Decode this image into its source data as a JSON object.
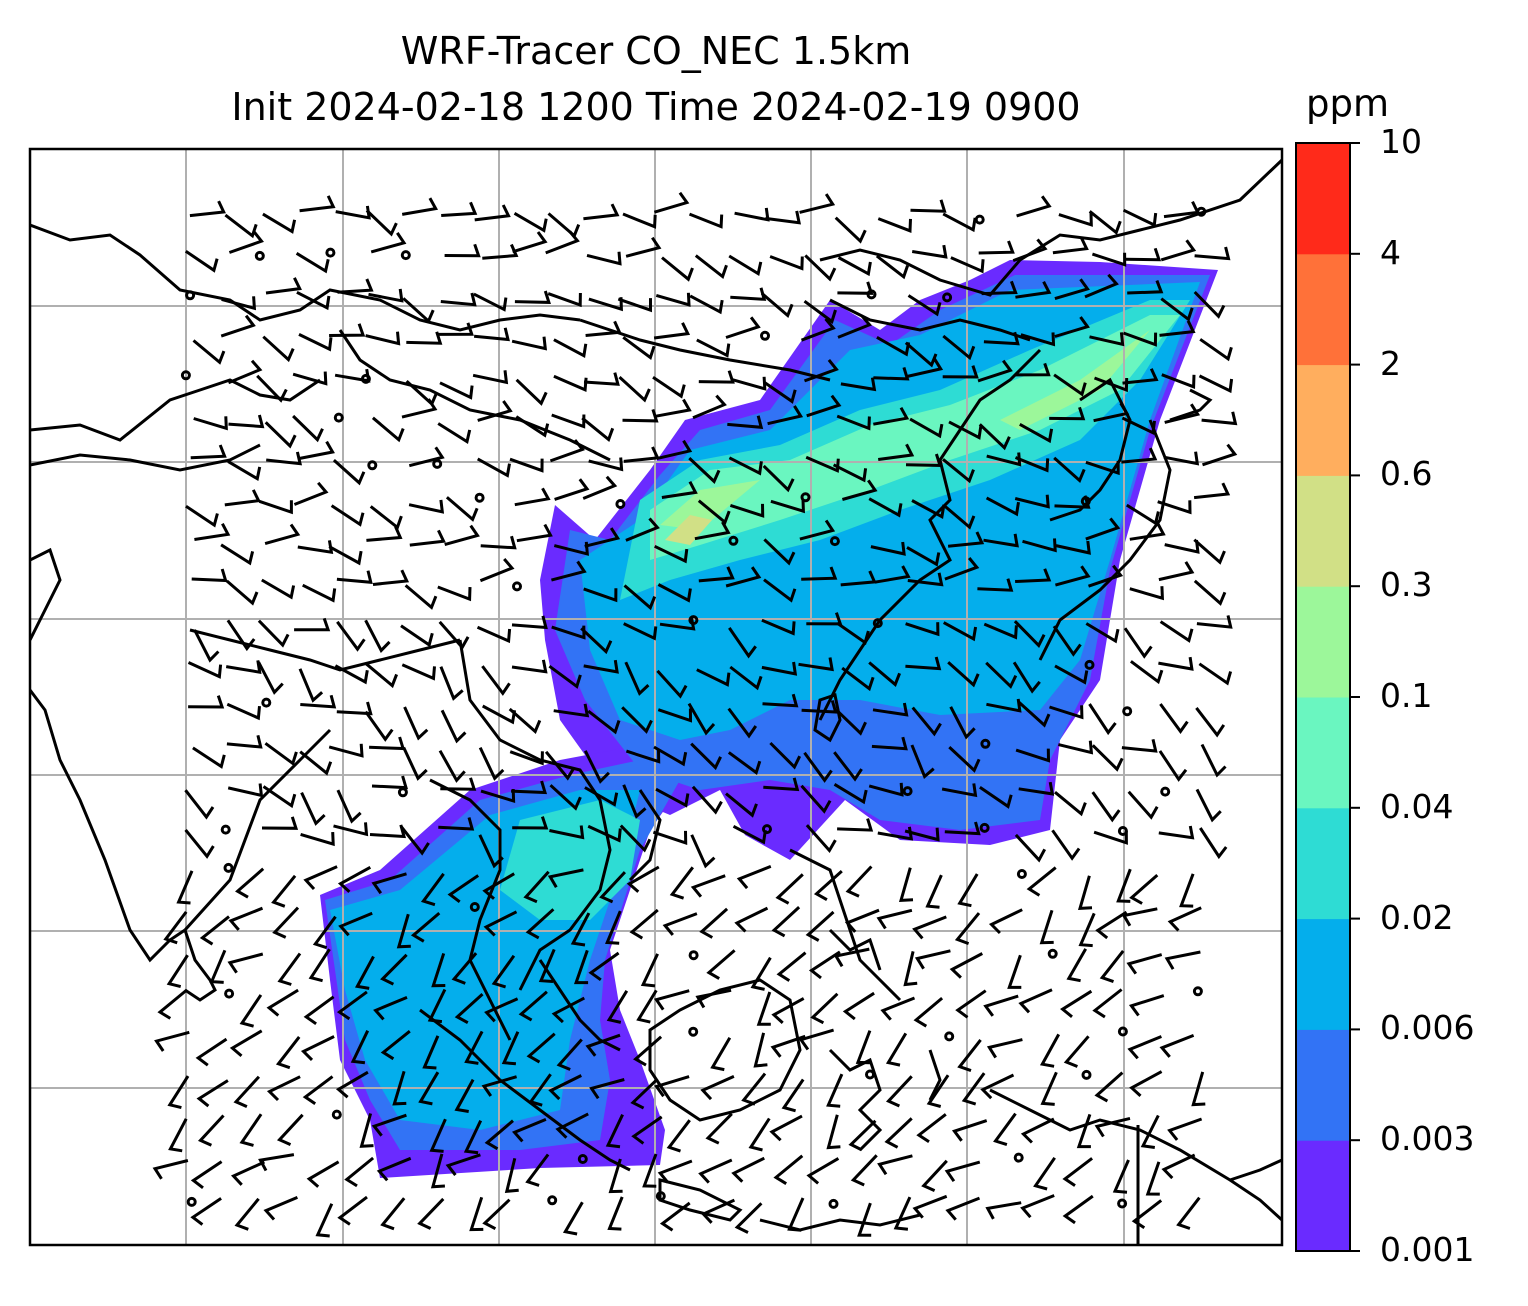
{
  "map": {
    "title_line1": "WRF-Tracer CO_NEC 1.5km",
    "title_line2": "Init 2024-02-18 1200 Time 2024-02-19 0900",
    "field": "CO tracer concentration with wind barbs",
    "gridline_color": "#b0b0b0",
    "coastline_color": "#000000"
  },
  "colorbar": {
    "unit": "ppm",
    "levels": [
      "0.001",
      "0.003",
      "0.006",
      "0.02",
      "0.04",
      "0.1",
      "0.3",
      "0.6",
      "2",
      "4",
      "10"
    ],
    "colors": [
      "#6a2bff",
      "#3273f5",
      "#04aeec",
      "#2edcd4",
      "#6af6c0",
      "#9cf79a",
      "#d1e086",
      "#ffae5e",
      "#ff7139",
      "#ff2a1a"
    ]
  }
}
